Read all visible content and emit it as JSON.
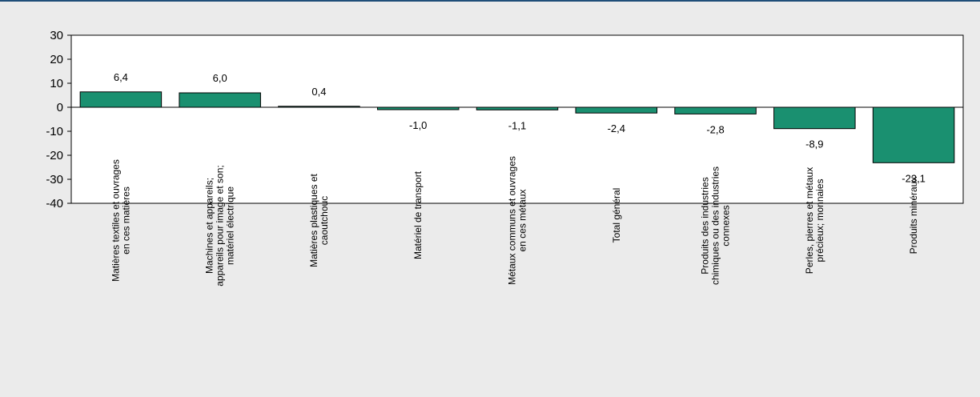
{
  "chart_data": {
    "type": "bar",
    "categories": [
      [
        "Matières textiles et ouvrages",
        "en ces matières"
      ],
      [
        "Machines et appareils;",
        "appareils pour image et son;",
        "matériel électrique"
      ],
      [
        "Matières plastiques et",
        "caoutchouc"
      ],
      [
        "Matériel de transport"
      ],
      [
        "Métaux communs et ouvrages",
        "en ces métaux"
      ],
      [
        "Total général"
      ],
      [
        "Produits des industries",
        "chimiques ou des industries",
        "connexes"
      ],
      [
        "Perles, pierres et métaux",
        "précieux; monnaies"
      ],
      [
        "Produits minéraux"
      ]
    ],
    "values": [
      6.4,
      6.0,
      0.4,
      -1.0,
      -1.1,
      -2.4,
      -2.8,
      -8.9,
      -23.1
    ],
    "data_labels": [
      "6,4",
      "6,0",
      "0,4",
      "-1,0",
      "-1,1",
      "-2,4",
      "-2,8",
      "-8,9",
      "-23,1"
    ],
    "ylim": [
      -40,
      30
    ],
    "yticks": [
      30,
      20,
      10,
      0,
      -10,
      -20,
      -30,
      -40
    ],
    "ytick_labels": [
      "30",
      "20",
      "10",
      "0",
      "-10",
      "-20",
      "-30",
      "-40"
    ],
    "grid": false,
    "legend": "none",
    "colors": {
      "bar": "#1a9070",
      "bar_stroke": "#000000",
      "plot_bg": "#ffffff",
      "page_bg": "#ebebeb"
    }
  }
}
